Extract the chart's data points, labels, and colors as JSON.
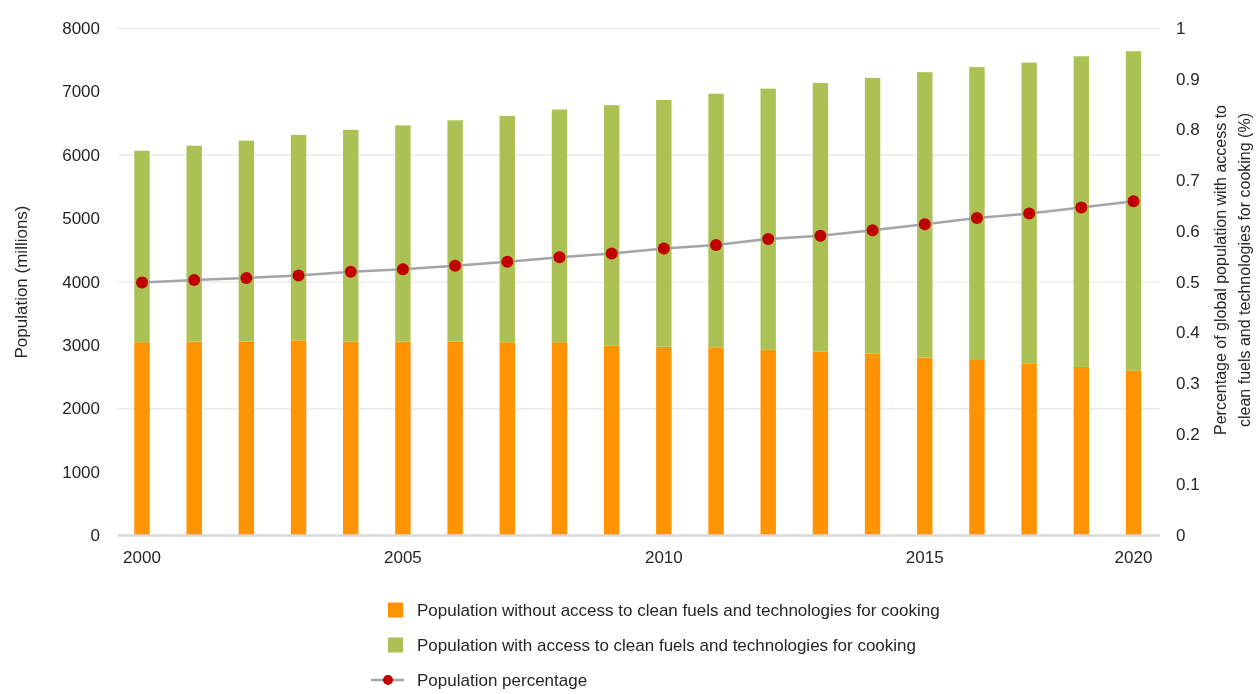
{
  "chart_data": {
    "type": "bar",
    "stacked": true,
    "categories": [
      "2000",
      null,
      null,
      null,
      null,
      "2005",
      null,
      null,
      null,
      null,
      "2010",
      null,
      null,
      null,
      null,
      "2015",
      null,
      null,
      null,
      "2020"
    ],
    "series": [
      {
        "name": "Population without access to clean fuels and technologies for cooking",
        "color": "#ff9300",
        "values": [
          3050,
          3060,
          3060,
          3080,
          3060,
          3060,
          3060,
          3050,
          3050,
          3000,
          2980,
          2970,
          2930,
          2900,
          2870,
          2810,
          2770,
          2710,
          2660,
          2600
        ]
      },
      {
        "name": "Population with access to clean fuels and technologies for cooking",
        "color": "#abc153",
        "values": [
          3020,
          3090,
          3170,
          3240,
          3340,
          3410,
          3490,
          3570,
          3670,
          3790,
          3890,
          4000,
          4120,
          4240,
          4350,
          4500,
          4620,
          4750,
          4900,
          5040
        ]
      },
      {
        "name": "Population percentage",
        "type": "line",
        "axis": "y2",
        "color": "#a5a5a5",
        "colors": [
          "#c00000",
          "#c00000",
          "#c00000",
          "#c00000",
          "#c00000",
          "#c00000",
          "#c00000",
          "#c00000",
          "#c00000",
          "#c00000",
          "#c00000",
          "#c00000",
          "#c00000",
          "#c00000",
          "#c00000",
          "#c00000",
          "#c00000",
          "#c00000",
          "#c00000",
          "#c00000"
        ],
        "values": [
          0.499,
          0.504,
          0.508,
          0.513,
          0.52,
          0.525,
          0.532,
          0.54,
          0.549,
          0.556,
          0.566,
          0.573,
          0.585,
          0.591,
          0.602,
          0.614,
          0.626,
          0.635,
          0.647,
          0.659
        ]
      }
    ],
    "ylabel": "Population (millions)",
    "y2label": "Percentage of global population with access to clean fuels and technologies for cooking (%)",
    "ylim": [
      0,
      8000
    ],
    "yticks": [
      0,
      1000,
      2000,
      3000,
      4000,
      5000,
      6000,
      7000,
      8000
    ],
    "y2lim": [
      0,
      1
    ],
    "y2ticks": [
      0,
      0.1,
      0.2,
      0.3,
      0.4,
      0.5,
      0.6,
      0.7,
      0.8,
      0.9,
      1
    ],
    "grid": "y",
    "legend": "bottom",
    "marker": "circle"
  }
}
